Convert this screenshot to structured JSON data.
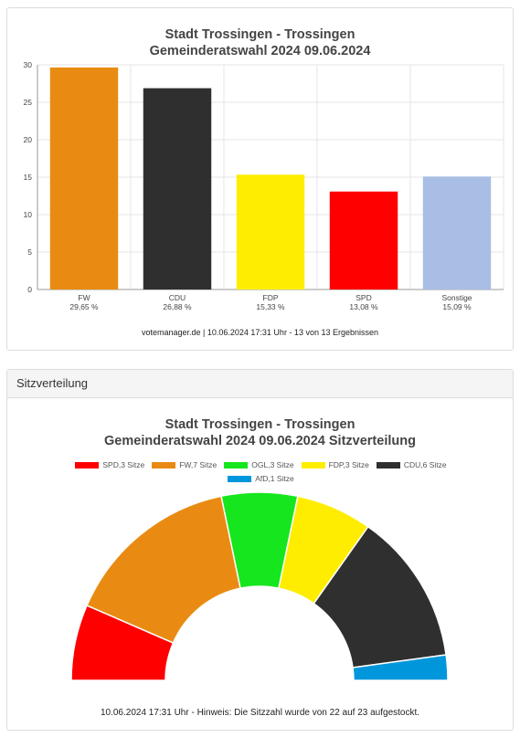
{
  "chart_data": [
    {
      "type": "bar",
      "title": "Stadt Trossingen - Trossingen",
      "subtitle": "Gemeinderatswahl 2024 09.06.2024",
      "categories": [
        "FW",
        "CDU",
        "FDP",
        "SPD",
        "Sonstige"
      ],
      "percent_labels": [
        "29,65 %",
        "26,88 %",
        "15,33 %",
        "13,08 %",
        "15,09 %"
      ],
      "values": [
        29.65,
        26.88,
        15.33,
        13.08,
        15.09
      ],
      "colors": [
        "#e98b12",
        "#2f2f2f",
        "#ffed00",
        "#ff0000",
        "#a9bee5"
      ],
      "ylim": [
        0,
        30
      ],
      "yticks": [
        "0",
        "5",
        "10",
        "15",
        "20",
        "25",
        "30"
      ],
      "grid": true,
      "footer": "votemanager.de | 10.06.2024 17:31 Uhr - 13 von 13 Ergebnissen"
    },
    {
      "type": "pie",
      "title": "Stadt Trossingen - Trossingen",
      "subtitle": "Gemeinderatswahl 2024 09.06.2024 Sitzverteilung",
      "series": [
        {
          "name": "SPD,3 Sitze",
          "value": 3,
          "color": "#ff0000"
        },
        {
          "name": "FW,7 Sitze",
          "value": 7,
          "color": "#e98b12"
        },
        {
          "name": "OGL,3 Sitze",
          "value": 3,
          "color": "#16e61e"
        },
        {
          "name": "FDP,3 Sitze",
          "value": 3,
          "color": "#ffed00"
        },
        {
          "name": "CDU,6 Sitze",
          "value": 6,
          "color": "#2f2f2f"
        },
        {
          "name": "AfD,1 Sitze",
          "value": 1,
          "color": "#0096dc"
        }
      ],
      "legend_position": "top",
      "footer": "10.06.2024 17:31 Uhr - Hinweis: Die Sitzzahl wurde von 22 auf 23 aufgestockt."
    }
  ],
  "card2_header": "Sitzverteilung"
}
